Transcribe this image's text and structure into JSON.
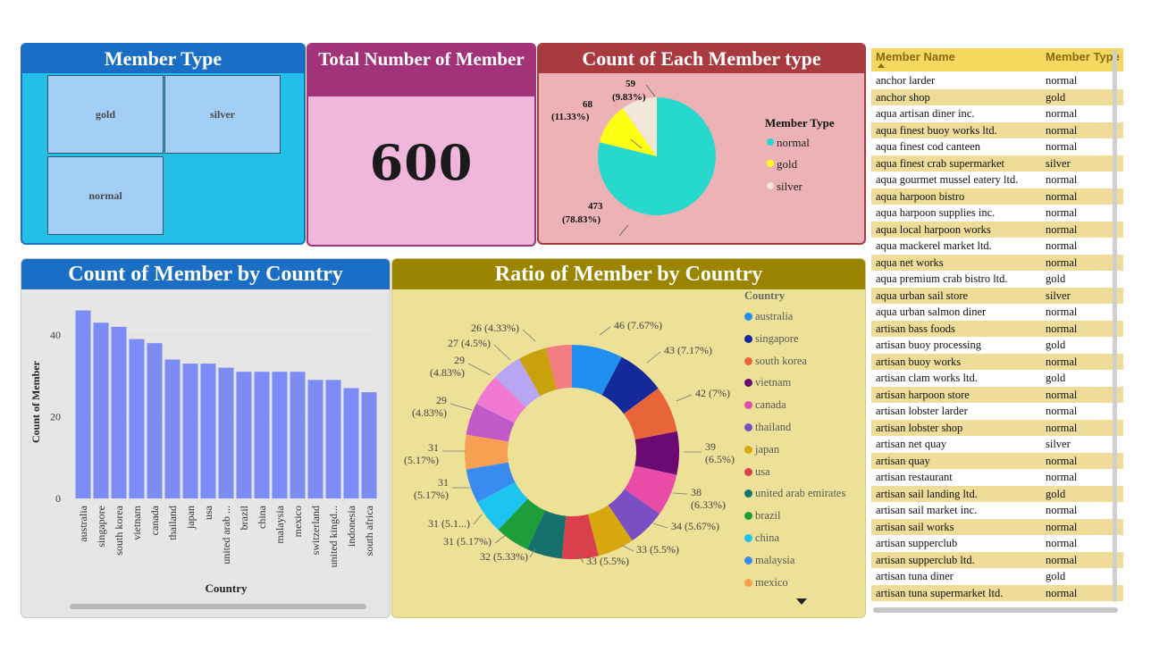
{
  "member_type_card": {
    "title": "Member Type",
    "tiles": [
      "gold",
      "silver",
      "normal"
    ]
  },
  "total_card": {
    "title": "Total Number of Member",
    "value": "600"
  },
  "pie_card": {
    "title": "Count of Each Member type",
    "legend_title": "Member Type",
    "legend_items": [
      {
        "label": "normal",
        "color": "#26d9cc"
      },
      {
        "label": "gold",
        "color": "#ffff14"
      },
      {
        "label": "silver",
        "color": "#f1e7d8"
      }
    ],
    "labels": [
      {
        "value": "59",
        "pct": "(9.83%)"
      },
      {
        "value": "68",
        "pct": "(11.33%)"
      },
      {
        "value": "473",
        "pct": "(78.83%)"
      }
    ]
  },
  "bar_card": {
    "title": "Count of Member by Country"
  },
  "donut_card": {
    "title": "Ratio of Member by Country",
    "legend_title": "Country",
    "legend_items": [
      {
        "label": "australia",
        "color": "#1f8ff0"
      },
      {
        "label": "singapore",
        "color": "#142a9a"
      },
      {
        "label": "south korea",
        "color": "#e8653a"
      },
      {
        "label": "vietnam",
        "color": "#6b0a72"
      },
      {
        "label": "canada",
        "color": "#e94ba8"
      },
      {
        "label": "thailand",
        "color": "#7a4fc4"
      },
      {
        "label": "japan",
        "color": "#d6a80e"
      },
      {
        "label": "usa",
        "color": "#d9404c"
      },
      {
        "label": "united arab emirates",
        "color": "#16706e"
      },
      {
        "label": "brazil",
        "color": "#1e9e3a"
      },
      {
        "label": "china",
        "color": "#1ec4f0"
      },
      {
        "label": "malaysia",
        "color": "#3a8bf0"
      },
      {
        "label": "mexico",
        "color": "#f7a052"
      }
    ]
  },
  "chart_data": [
    {
      "type": "pie",
      "title": "Count of Each Member type",
      "legend_title": "Member Type",
      "legend_position": "right",
      "slices": [
        {
          "label": "normal",
          "value": 473,
          "pct": "78.83%",
          "color": "#26d9cc"
        },
        {
          "label": "gold",
          "value": 68,
          "pct": "11.33%",
          "color": "#ffff14"
        },
        {
          "label": "silver",
          "value": 59,
          "pct": "9.83%",
          "color": "#f1e7d8"
        }
      ]
    },
    {
      "type": "bar",
      "title": "Count of Member by Country",
      "xlabel": "Country",
      "ylabel": "Count of Member",
      "ylim": [
        0,
        47
      ],
      "yticks": [
        0,
        20,
        40
      ],
      "grid": true,
      "bar_color": "#7b8cf7",
      "categories": [
        "australia",
        "singapore",
        "south korea",
        "vietnam",
        "canada",
        "thailand",
        "japan",
        "usa",
        "united arab ...",
        "brazil",
        "china",
        "malaysia",
        "mexico",
        "switzerland",
        "united kingd...",
        "indonesia",
        "south africa"
      ],
      "values": [
        46,
        43,
        42,
        39,
        38,
        34,
        33,
        33,
        32,
        31,
        31,
        31,
        31,
        29,
        29,
        27,
        26
      ]
    },
    {
      "type": "pie",
      "title": "Ratio of Member by Country",
      "legend_title": "Country",
      "legend_position": "right",
      "slices": [
        {
          "value": 46,
          "label": "46 (7.67%)",
          "color": "#1f8ff0"
        },
        {
          "value": 43,
          "label": "43 (7.17%)",
          "color": "#142a9a"
        },
        {
          "value": 42,
          "label": "42 (7%)",
          "color": "#e8653a"
        },
        {
          "value": 39,
          "label": "39 (6.5%)",
          "color": "#6b0a72"
        },
        {
          "value": 38,
          "label": "38 (6.33%)",
          "color": "#e94ba8"
        },
        {
          "value": 34,
          "label": "34 (5.67%)",
          "color": "#7a4fc4"
        },
        {
          "value": 33,
          "label": "33 (5.5%)",
          "color": "#d6a80e"
        },
        {
          "value": 33,
          "label": "33 (5.5%)",
          "color": "#d9404c"
        },
        {
          "value": 32,
          "label": "32 (5.33%)",
          "color": "#16706e"
        },
        {
          "value": 31,
          "label": "31 (5.17%)",
          "color": "#1e9e3a"
        },
        {
          "value": 31,
          "label": "31 (5.1...)",
          "color": "#1ec4f0"
        },
        {
          "value": 31,
          "label": "31 (5.17%)",
          "color": "#3a8bf0"
        },
        {
          "value": 31,
          "label": "31 (5.17%)",
          "color": "#f7a052"
        },
        {
          "value": 29,
          "label": "29 (4.83%)",
          "color": "#c05ac8"
        },
        {
          "value": 29,
          "label": "29 (4.83%)",
          "color": "#f07ad2"
        },
        {
          "value": 27,
          "label": "27 (4.5%)",
          "color": "#b8a6f5"
        },
        {
          "value": 26,
          "label": "26 (4.33%)",
          "color": "#c8a20c"
        },
        {
          "value": 23,
          "label": "",
          "color": "#f27c80"
        }
      ]
    }
  ],
  "table": {
    "headers": [
      "Member Name",
      "Member Type"
    ],
    "rows": [
      [
        "anchor larder",
        "normal"
      ],
      [
        "anchor shop",
        "gold"
      ],
      [
        "aqua artisan diner inc.",
        "normal"
      ],
      [
        "aqua finest buoy works ltd.",
        "normal"
      ],
      [
        "aqua finest cod canteen",
        "normal"
      ],
      [
        "aqua finest crab supermarket",
        "silver"
      ],
      [
        "aqua gourmet mussel eatery ltd.",
        "normal"
      ],
      [
        "aqua harpoon bistro",
        "normal"
      ],
      [
        "aqua harpoon supplies inc.",
        "normal"
      ],
      [
        "aqua local harpoon works",
        "normal"
      ],
      [
        "aqua mackerel market ltd.",
        "normal"
      ],
      [
        "aqua net works",
        "normal"
      ],
      [
        "aqua premium crab bistro ltd.",
        "gold"
      ],
      [
        "aqua urban sail store",
        "silver"
      ],
      [
        "aqua urban salmon diner",
        "normal"
      ],
      [
        "artisan bass foods",
        "normal"
      ],
      [
        "artisan buoy processing",
        "gold"
      ],
      [
        "artisan buoy works",
        "normal"
      ],
      [
        "artisan clam works ltd.",
        "gold"
      ],
      [
        "artisan harpoon store",
        "normal"
      ],
      [
        "artisan lobster larder",
        "normal"
      ],
      [
        "artisan lobster shop",
        "normal"
      ],
      [
        "artisan net quay",
        "silver"
      ],
      [
        "artisan quay",
        "normal"
      ],
      [
        "artisan restaurant",
        "normal"
      ],
      [
        "artisan sail landing ltd.",
        "gold"
      ],
      [
        "artisan sail market inc.",
        "normal"
      ],
      [
        "artisan sail works",
        "normal"
      ],
      [
        "artisan supperclub",
        "normal"
      ],
      [
        "artisan supperclub ltd.",
        "normal"
      ],
      [
        "artisan tuna diner",
        "gold"
      ],
      [
        "artisan tuna supermarket ltd.",
        "normal"
      ]
    ]
  }
}
